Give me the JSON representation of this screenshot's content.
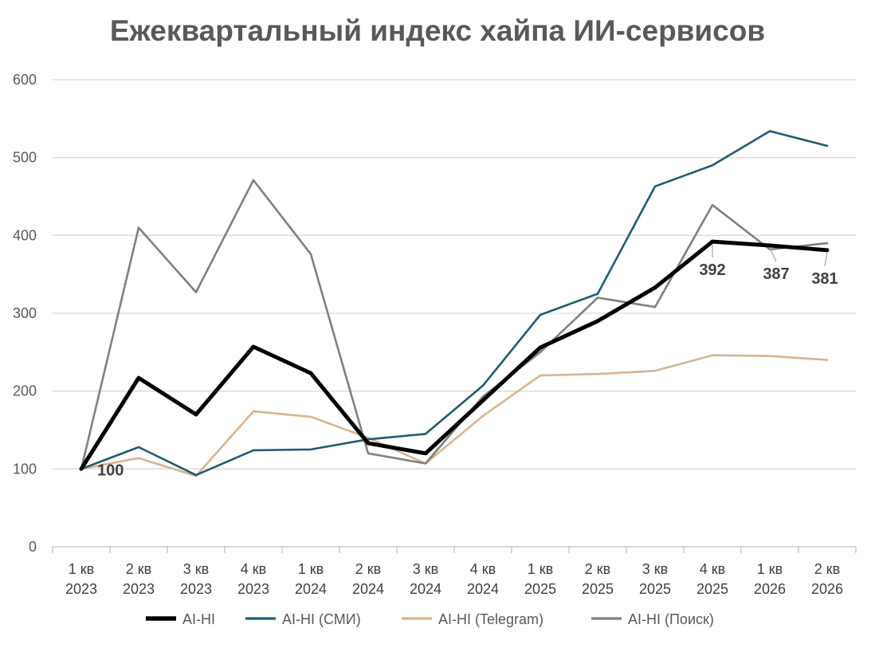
{
  "chart_data": {
    "type": "line",
    "title": "Ежеквартальный индекс хайпа ИИ-сервисов",
    "xlabel": "",
    "ylabel": "",
    "ylim": [
      0,
      600
    ],
    "yticks": [
      "0",
      "100",
      "200",
      "300",
      "400",
      "500",
      "600"
    ],
    "grid": true,
    "legend_position": "bottom",
    "categories": [
      [
        "1 кв",
        "2023"
      ],
      [
        "2 кв",
        "2023"
      ],
      [
        "3 кв",
        "2023"
      ],
      [
        "4 кв",
        "2023"
      ],
      [
        "1 кв",
        "2024"
      ],
      [
        "2 кв",
        "2024"
      ],
      [
        "3 кв",
        "2024"
      ],
      [
        "4 кв",
        "2024"
      ],
      [
        "1 кв",
        "2025"
      ],
      [
        "2 кв",
        "2025"
      ],
      [
        "3 кв",
        "2025"
      ],
      [
        "4 кв",
        "2025"
      ],
      [
        "1 кв",
        "2026"
      ],
      [
        "2 кв",
        "2026"
      ]
    ],
    "series": [
      {
        "name": "AI-HI",
        "color": "#000000",
        "values": [
          100,
          217,
          170,
          257,
          223,
          133,
          120,
          188,
          256,
          290,
          333,
          392,
          387,
          381
        ]
      },
      {
        "name": "AI-HI (СМИ)",
        "color": "#1f5c73",
        "values": [
          100,
          128,
          92,
          124,
          125,
          138,
          145,
          207,
          298,
          325,
          463,
          490,
          534,
          515
        ]
      },
      {
        "name": "AI-HI (Telegram)",
        "color": "#d9b48f",
        "values": [
          100,
          114,
          91,
          174,
          167,
          140,
          107,
          168,
          220,
          222,
          226,
          246,
          245,
          240
        ]
      },
      {
        "name": "AI-HI (Поиск)",
        "color": "#808080",
        "values": [
          100,
          410,
          327,
          471,
          376,
          120,
          107,
          193,
          250,
          320,
          308,
          439,
          382,
          390
        ]
      }
    ],
    "data_labels": [
      {
        "series": 0,
        "index": 0,
        "text": "100"
      },
      {
        "series": 0,
        "index": 11,
        "text": "392"
      },
      {
        "series": 0,
        "index": 12,
        "text": "387"
      },
      {
        "series": 0,
        "index": 13,
        "text": "381"
      }
    ]
  }
}
